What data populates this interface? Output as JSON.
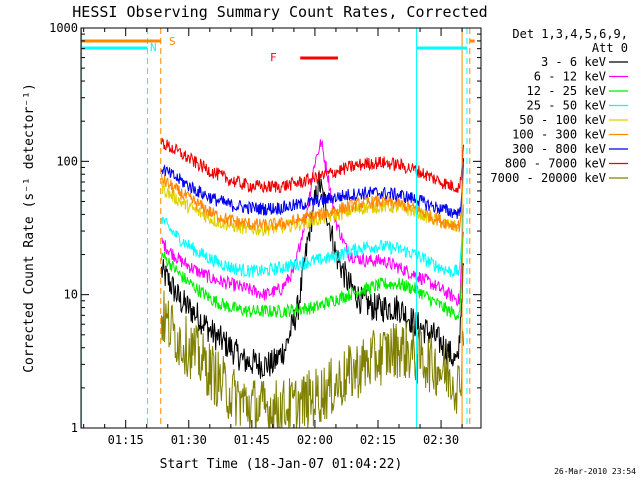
{
  "chart_data": {
    "type": "line",
    "title": "HESSI Observing Summary Count Rates, Corrected",
    "xlabel": "Start Time (18-Jan-07 01:04:22)",
    "ylabel": "Corrected Count Rate (s⁻¹ detector⁻¹)",
    "yscale": "log",
    "ylim": [
      1,
      1000
    ],
    "xlim": [
      "01:04:22",
      "02:39:30"
    ],
    "x_tick_labels": [
      "01:15",
      "01:30",
      "01:45",
      "02:00",
      "02:15",
      "02:30"
    ],
    "x_ticks_min": [
      75,
      90,
      105,
      120,
      135,
      150
    ],
    "y_tick_labels": [
      "1",
      "10",
      "100",
      "1000"
    ],
    "y_ticks": [
      1,
      10,
      100,
      1000
    ],
    "grid": false,
    "legend_position": "right",
    "legend_title": [
      "Det 1,3,4,5,6,9,",
      "Att 0"
    ],
    "series": [
      {
        "name": "3 - 6 keV",
        "color": "#000000",
        "x": [
          "01:23:30",
          "01:25:00",
          "01:28:00",
          "01:32:00",
          "01:36:00",
          "01:40:00",
          "01:43:00",
          "01:47:00",
          "01:50:00",
          "01:53:00",
          "01:56:00",
          "01:59:00",
          "02:01:00",
          "02:03:00",
          "02:05:00",
          "02:08:00",
          "02:11:00",
          "02:14:00",
          "02:17:00",
          "02:20:00",
          "02:24:00",
          "02:28:00",
          "02:31:00",
          "02:34:00",
          "02:35:30"
        ],
        "values": [
          15,
          13,
          9,
          7,
          5,
          4,
          3.2,
          3,
          3,
          4,
          8,
          35,
          70,
          40,
          20,
          12,
          9,
          8,
          8,
          8,
          6,
          5,
          4,
          3,
          20
        ]
      },
      {
        "name": "6 - 12 keV",
        "color": "#ff00ff",
        "x": [
          "01:23:30",
          "01:25:00",
          "01:28:00",
          "01:32:00",
          "01:36:00",
          "01:40:00",
          "01:44:00",
          "01:48:00",
          "01:52:00",
          "01:55:00",
          "01:58:00",
          "02:00:00",
          "02:01:30",
          "02:03:00",
          "02:05:00",
          "02:08:00",
          "02:12:00",
          "02:16:00",
          "02:20:00",
          "02:24:00",
          "02:28:00",
          "02:32:00",
          "02:34:30",
          "02:35:30"
        ],
        "values": [
          25,
          22,
          18,
          15,
          13,
          12,
          11,
          10,
          11,
          15,
          40,
          100,
          140,
          80,
          35,
          20,
          18,
          18,
          16,
          14,
          12,
          10,
          9,
          60
        ]
      },
      {
        "name": "12 - 25 keV",
        "color": "#00ee00",
        "x": [
          "01:23:30",
          "01:25:00",
          "01:28:00",
          "01:32:00",
          "01:36:00",
          "01:40:00",
          "01:44:00",
          "01:48:00",
          "01:52:00",
          "01:56:00",
          "02:00:00",
          "02:04:00",
          "02:08:00",
          "02:12:00",
          "02:16:00",
          "02:20:00",
          "02:24:00",
          "02:28:00",
          "02:32:00",
          "02:34:30",
          "02:35:30"
        ],
        "values": [
          20,
          18,
          14,
          11,
          9,
          8,
          7.5,
          7.5,
          7.5,
          7.8,
          8,
          9,
          10,
          11,
          12,
          12,
          11,
          9,
          7.5,
          7,
          40
        ]
      },
      {
        "name": "25 - 50 keV",
        "color": "#00ffff",
        "x": [
          "01:23:30",
          "01:25:00",
          "01:28:00",
          "01:32:00",
          "01:36:00",
          "01:40:00",
          "01:44:00",
          "01:48:00",
          "01:52:00",
          "01:56:00",
          "02:00:00",
          "02:04:00",
          "02:08:00",
          "02:12:00",
          "02:16:00",
          "02:20:00",
          "02:24:00",
          "02:28:00",
          "02:32:00",
          "02:34:30",
          "02:35:30"
        ],
        "values": [
          38,
          32,
          26,
          21,
          18,
          16,
          15,
          15,
          16,
          17,
          18,
          19,
          21,
          23,
          23,
          22,
          20,
          17,
          15,
          15,
          60
        ]
      },
      {
        "name": "50 - 100 keV",
        "color": "#e0d000",
        "x": [
          "01:23:30",
          "01:25:00",
          "01:28:00",
          "01:32:00",
          "01:36:00",
          "01:40:00",
          "01:44:00",
          "01:48:00",
          "01:52:00",
          "01:56:00",
          "02:00:00",
          "02:04:00",
          "02:08:00",
          "02:12:00",
          "02:16:00",
          "02:20:00",
          "02:24:00",
          "02:28:00",
          "02:32:00",
          "02:34:30",
          "02:35:30"
        ],
        "values": [
          65,
          58,
          50,
          42,
          36,
          33,
          31,
          31,
          32,
          34,
          36,
          39,
          42,
          45,
          46,
          45,
          42,
          37,
          33,
          32,
          90
        ]
      },
      {
        "name": "100 - 300 keV",
        "color": "#ff8800",
        "x": [
          "01:23:30",
          "01:25:00",
          "01:28:00",
          "01:32:00",
          "01:36:00",
          "01:40:00",
          "01:44:00",
          "01:48:00",
          "01:52:00",
          "01:56:00",
          "02:00:00",
          "02:04:00",
          "02:08:00",
          "02:12:00",
          "02:16:00",
          "02:20:00",
          "02:24:00",
          "02:28:00",
          "02:32:00",
          "02:34:30",
          "02:35:30"
        ],
        "values": [
          75,
          68,
          58,
          48,
          40,
          36,
          34,
          33,
          34,
          36,
          39,
          42,
          46,
          49,
          50,
          48,
          44,
          38,
          34,
          33,
          100
        ]
      },
      {
        "name": "300 - 800 keV",
        "color": "#0000ee",
        "x": [
          "01:23:30",
          "01:25:00",
          "01:28:00",
          "01:32:00",
          "01:36:00",
          "01:40:00",
          "01:44:00",
          "01:48:00",
          "01:52:00",
          "01:56:00",
          "02:00:00",
          "02:04:00",
          "02:08:00",
          "02:12:00",
          "02:16:00",
          "02:20:00",
          "02:24:00",
          "02:28:00",
          "02:32:00",
          "02:34:30",
          "02:35:30"
        ],
        "values": [
          90,
          82,
          72,
          60,
          52,
          47,
          45,
          44,
          45,
          47,
          50,
          53,
          56,
          58,
          58,
          56,
          52,
          46,
          42,
          41,
          110
        ]
      },
      {
        "name": "800 - 7000 keV",
        "color": "#ee0000",
        "x": [
          "01:23:30",
          "01:25:00",
          "01:28:00",
          "01:32:00",
          "01:36:00",
          "01:40:00",
          "01:44:00",
          "01:48:00",
          "01:52:00",
          "01:56:00",
          "02:00:00",
          "02:04:00",
          "02:08:00",
          "02:12:00",
          "02:16:00",
          "02:20:00",
          "02:24:00",
          "02:28:00",
          "02:32:00",
          "02:34:30",
          "02:35:30"
        ],
        "values": [
          140,
          130,
          115,
          96,
          82,
          72,
          66,
          64,
          65,
          69,
          75,
          82,
          90,
          96,
          98,
          94,
          86,
          75,
          66,
          64,
          150
        ]
      },
      {
        "name": "7000 - 20000 keV",
        "color": "#808000",
        "x": [
          "01:23:30",
          "01:25:00",
          "01:28:00",
          "01:32:00",
          "01:36:00",
          "01:40:00",
          "01:44:00",
          "01:48:00",
          "01:52:00",
          "01:56:00",
          "02:00:00",
          "02:04:00",
          "02:08:00",
          "02:12:00",
          "02:16:00",
          "02:20:00",
          "02:24:00",
          "02:28:00",
          "02:32:00",
          "02:34:30",
          "02:35:30"
        ],
        "values": [
          7,
          6,
          4.5,
          3.5,
          2.5,
          1.8,
          1.5,
          1.4,
          1.4,
          1.5,
          1.7,
          2,
          2.5,
          3,
          3.5,
          4,
          3.5,
          3,
          2.5,
          2,
          8
        ]
      }
    ],
    "markers": {
      "night_label": "N",
      "saa_label": "S",
      "flare_label": "F",
      "night_color": "#00ffff",
      "saa_color": "#ff8800",
      "flare_color": "#ff0000"
    },
    "timestamp": "26-Mar-2010 23:54"
  }
}
